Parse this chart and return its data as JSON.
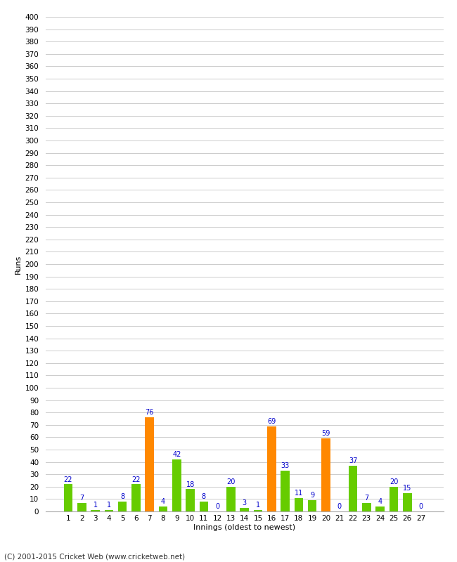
{
  "innings": [
    1,
    2,
    3,
    4,
    5,
    6,
    7,
    8,
    9,
    10,
    11,
    12,
    13,
    14,
    15,
    16,
    17,
    18,
    19,
    20,
    21,
    22,
    23,
    24,
    25,
    26,
    27
  ],
  "values": [
    22,
    7,
    1,
    1,
    8,
    22,
    76,
    4,
    42,
    18,
    8,
    0,
    20,
    3,
    1,
    69,
    33,
    11,
    9,
    59,
    0,
    37,
    7,
    4,
    20,
    15,
    0
  ],
  "colors": [
    "#66cc00",
    "#66cc00",
    "#66cc00",
    "#66cc00",
    "#66cc00",
    "#66cc00",
    "#ff8800",
    "#66cc00",
    "#66cc00",
    "#66cc00",
    "#66cc00",
    "#66cc00",
    "#66cc00",
    "#66cc00",
    "#66cc00",
    "#ff8800",
    "#66cc00",
    "#66cc00",
    "#66cc00",
    "#ff8800",
    "#66cc00",
    "#66cc00",
    "#66cc00",
    "#66cc00",
    "#66cc00",
    "#66cc00",
    "#66cc00"
  ],
  "ylabel": "Runs",
  "xlabel": "Innings (oldest to newest)",
  "ylim": [
    0,
    400
  ],
  "ytick_step": 10,
  "label_color": "#0000cc",
  "bg_color": "#ffffff",
  "grid_color": "#cccccc",
  "footer": "(C) 2001-2015 Cricket Web (www.cricketweb.net)",
  "bar_width": 0.65,
  "label_fontsize": 7,
  "tick_fontsize": 7.5,
  "ylabel_fontsize": 8,
  "xlabel_fontsize": 8
}
